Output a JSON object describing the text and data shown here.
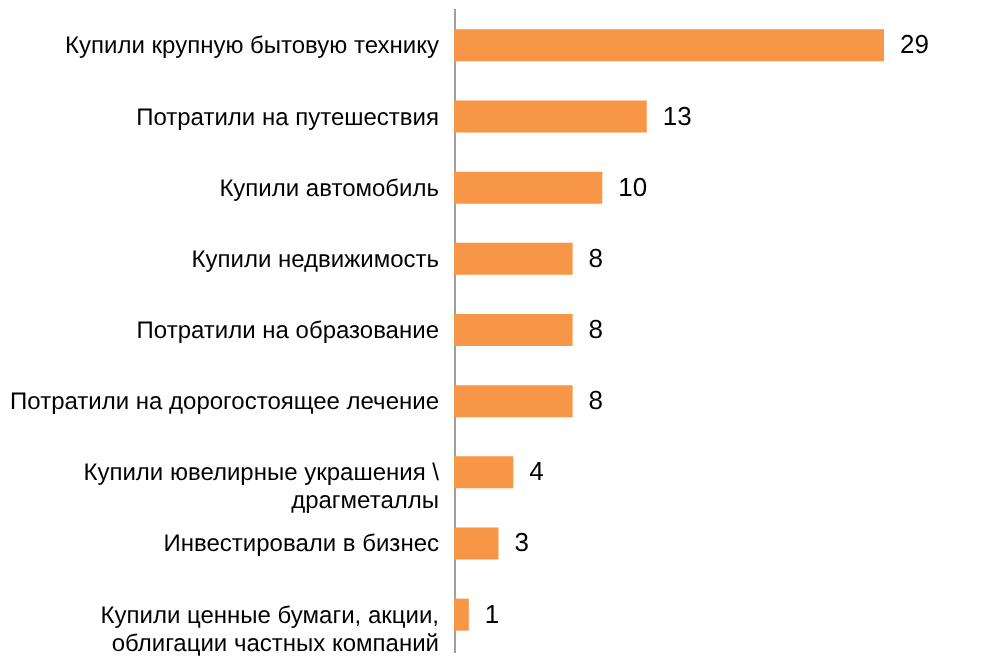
{
  "chart_data": {
    "type": "bar",
    "orientation": "horizontal",
    "data_labels": true,
    "categories": [
      "Купили крупную бытовую технику",
      "Потратили на путешествия",
      "Купили автомобиль",
      "Купили недвижимость",
      "Потратили на образование",
      "Потратили на дорогостоящее лечение",
      "Купили ювелирные украшения \\\nдрагметаллы",
      "Инвестировали в бизнес",
      "Купили ценные бумаги, акции,\nоблигации частных компаний"
    ],
    "values": [
      29,
      13,
      10,
      8,
      8,
      8,
      4,
      3,
      1
    ],
    "color": "#f79646"
  }
}
